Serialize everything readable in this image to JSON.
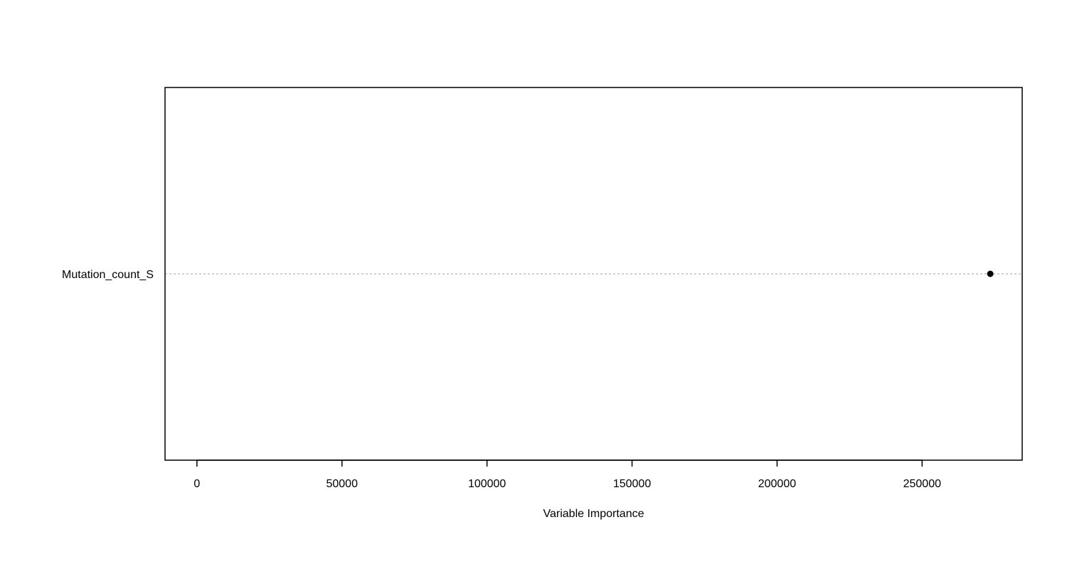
{
  "chart_data": {
    "type": "scatter",
    "title": "",
    "xlabel": "Variable Importance",
    "ylabel": "",
    "categories": [
      "Mutation_count_S"
    ],
    "values": [
      273500
    ],
    "x_ticks": [
      0,
      50000,
      100000,
      150000,
      200000,
      250000
    ],
    "x_tick_labels": [
      "0",
      "50000",
      "100000",
      "150000",
      "200000",
      "250000"
    ],
    "xlim": [
      -11000,
      284500
    ],
    "grid": "dotted guide line per category",
    "legend": "none",
    "colors": {
      "point": "#000000",
      "guide": "#b3b3b3",
      "axis": "#000000"
    }
  }
}
